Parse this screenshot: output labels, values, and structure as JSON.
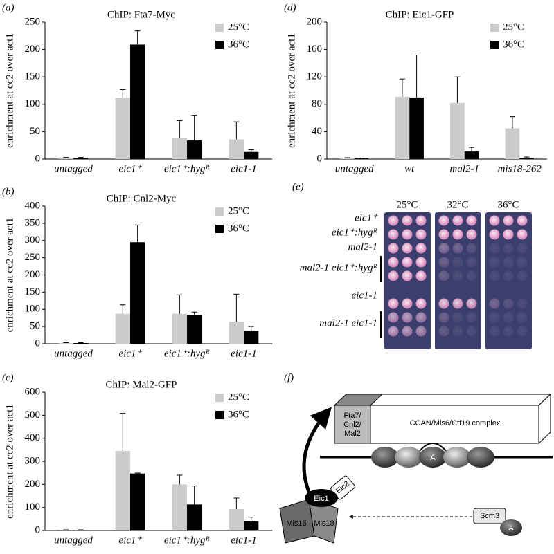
{
  "chart_data": [
    {
      "type": "bar",
      "panel": "(a)",
      "title": "ChIP: Fta7-Myc",
      "y_label": "enrichment at cc2 over act1",
      "categories": [
        "untagged",
        "eic1⁺",
        "eic1⁺:hygᴿ",
        "eic1-1"
      ],
      "series": [
        {
          "name": "25°C",
          "color": "#cccccc",
          "values": [
            2,
            112,
            38,
            36
          ],
          "errors": [
            1,
            15,
            32,
            32
          ]
        },
        {
          "name": "36°C",
          "color": "#000000",
          "values": [
            2,
            209,
            34,
            13
          ],
          "errors": [
            1,
            25,
            46,
            4
          ]
        }
      ],
      "ylim": [
        0,
        250
      ],
      "yticks": [
        0,
        50,
        100,
        150,
        200,
        250
      ],
      "legend": "top-right"
    },
    {
      "type": "bar",
      "panel": "(b)",
      "title": "ChIP: Cnl2-Myc",
      "y_label": "enrichment at cc2 over act1",
      "categories": [
        "untagged",
        "eic1⁺",
        "eic1⁺:hygᴿ",
        "eic1-1"
      ],
      "series": [
        {
          "name": "25°C",
          "color": "#cccccc",
          "values": [
            2,
            87,
            87,
            64
          ],
          "errors": [
            1,
            26,
            55,
            80
          ]
        },
        {
          "name": "36°C",
          "color": "#000000",
          "values": [
            2,
            295,
            84,
            38
          ],
          "errors": [
            1,
            50,
            8,
            12
          ]
        }
      ],
      "ylim": [
        0,
        400
      ],
      "yticks": [
        0,
        50,
        100,
        150,
        200,
        250,
        300,
        350,
        400
      ],
      "legend": "top-right"
    },
    {
      "type": "bar",
      "panel": "(c)",
      "title": "ChIP: Mal2-GFP",
      "y_label": "enrichment at cc2 over act1",
      "categories": [
        "untagged",
        "eic1⁺",
        "eic1⁺:hygᴿ",
        "eic1-1"
      ],
      "series": [
        {
          "name": "25°C",
          "color": "#cccccc",
          "values": [
            2,
            345,
            200,
            93
          ],
          "errors": [
            1,
            163,
            40,
            48
          ]
        },
        {
          "name": "36°C",
          "color": "#000000",
          "values": [
            2,
            247,
            113,
            40
          ],
          "errors": [
            1,
            2,
            80,
            18
          ]
        }
      ],
      "ylim": [
        0,
        600
      ],
      "yticks": [
        0,
        100,
        200,
        300,
        400,
        500,
        600
      ],
      "legend": "top-right"
    },
    {
      "type": "bar",
      "panel": "(d)",
      "title": "ChIP: Eic1-GFP",
      "y_label": "enrichment at cc2 over act1",
      "categories": [
        "untagged",
        "wt",
        "mal2-1",
        "mis18-262"
      ],
      "series": [
        {
          "name": "25°C",
          "color": "#cccccc",
          "values": [
            1,
            91,
            82,
            45
          ],
          "errors": [
            1,
            26,
            38,
            17
          ]
        },
        {
          "name": "36°C",
          "color": "#000000",
          "values": [
            1,
            90,
            11,
            2
          ],
          "errors": [
            0.5,
            62,
            6,
            1
          ]
        }
      ],
      "ylim": [
        0,
        200
      ],
      "yticks": [
        0,
        40,
        80,
        120,
        160,
        200
      ],
      "legend": "top-right"
    }
  ],
  "spot_assay": {
    "panel": "(e)",
    "temperatures": [
      "25°C",
      "32°C",
      "36°C"
    ],
    "strains": [
      "eic1⁺",
      "eic1⁺:hygᴿ",
      "mal2-1",
      "mal2-1 eic1⁺:hygᴿ",
      "eic1-1",
      "mal2-1 eic1-1"
    ]
  },
  "diagram": {
    "panel": "(f)",
    "complex_head": [
      "Fta7/",
      "Cnl2/",
      "Mal2"
    ],
    "complex": "CCAN/Mis6/Ctf19 complex",
    "centromere_nucleosome": "A",
    "eic1": "Eic1",
    "eic2": "Eic2",
    "mis16": "Mis16",
    "mis18": "Mis18",
    "scm3": "Scm3",
    "scm3_nucleosome": "A"
  }
}
